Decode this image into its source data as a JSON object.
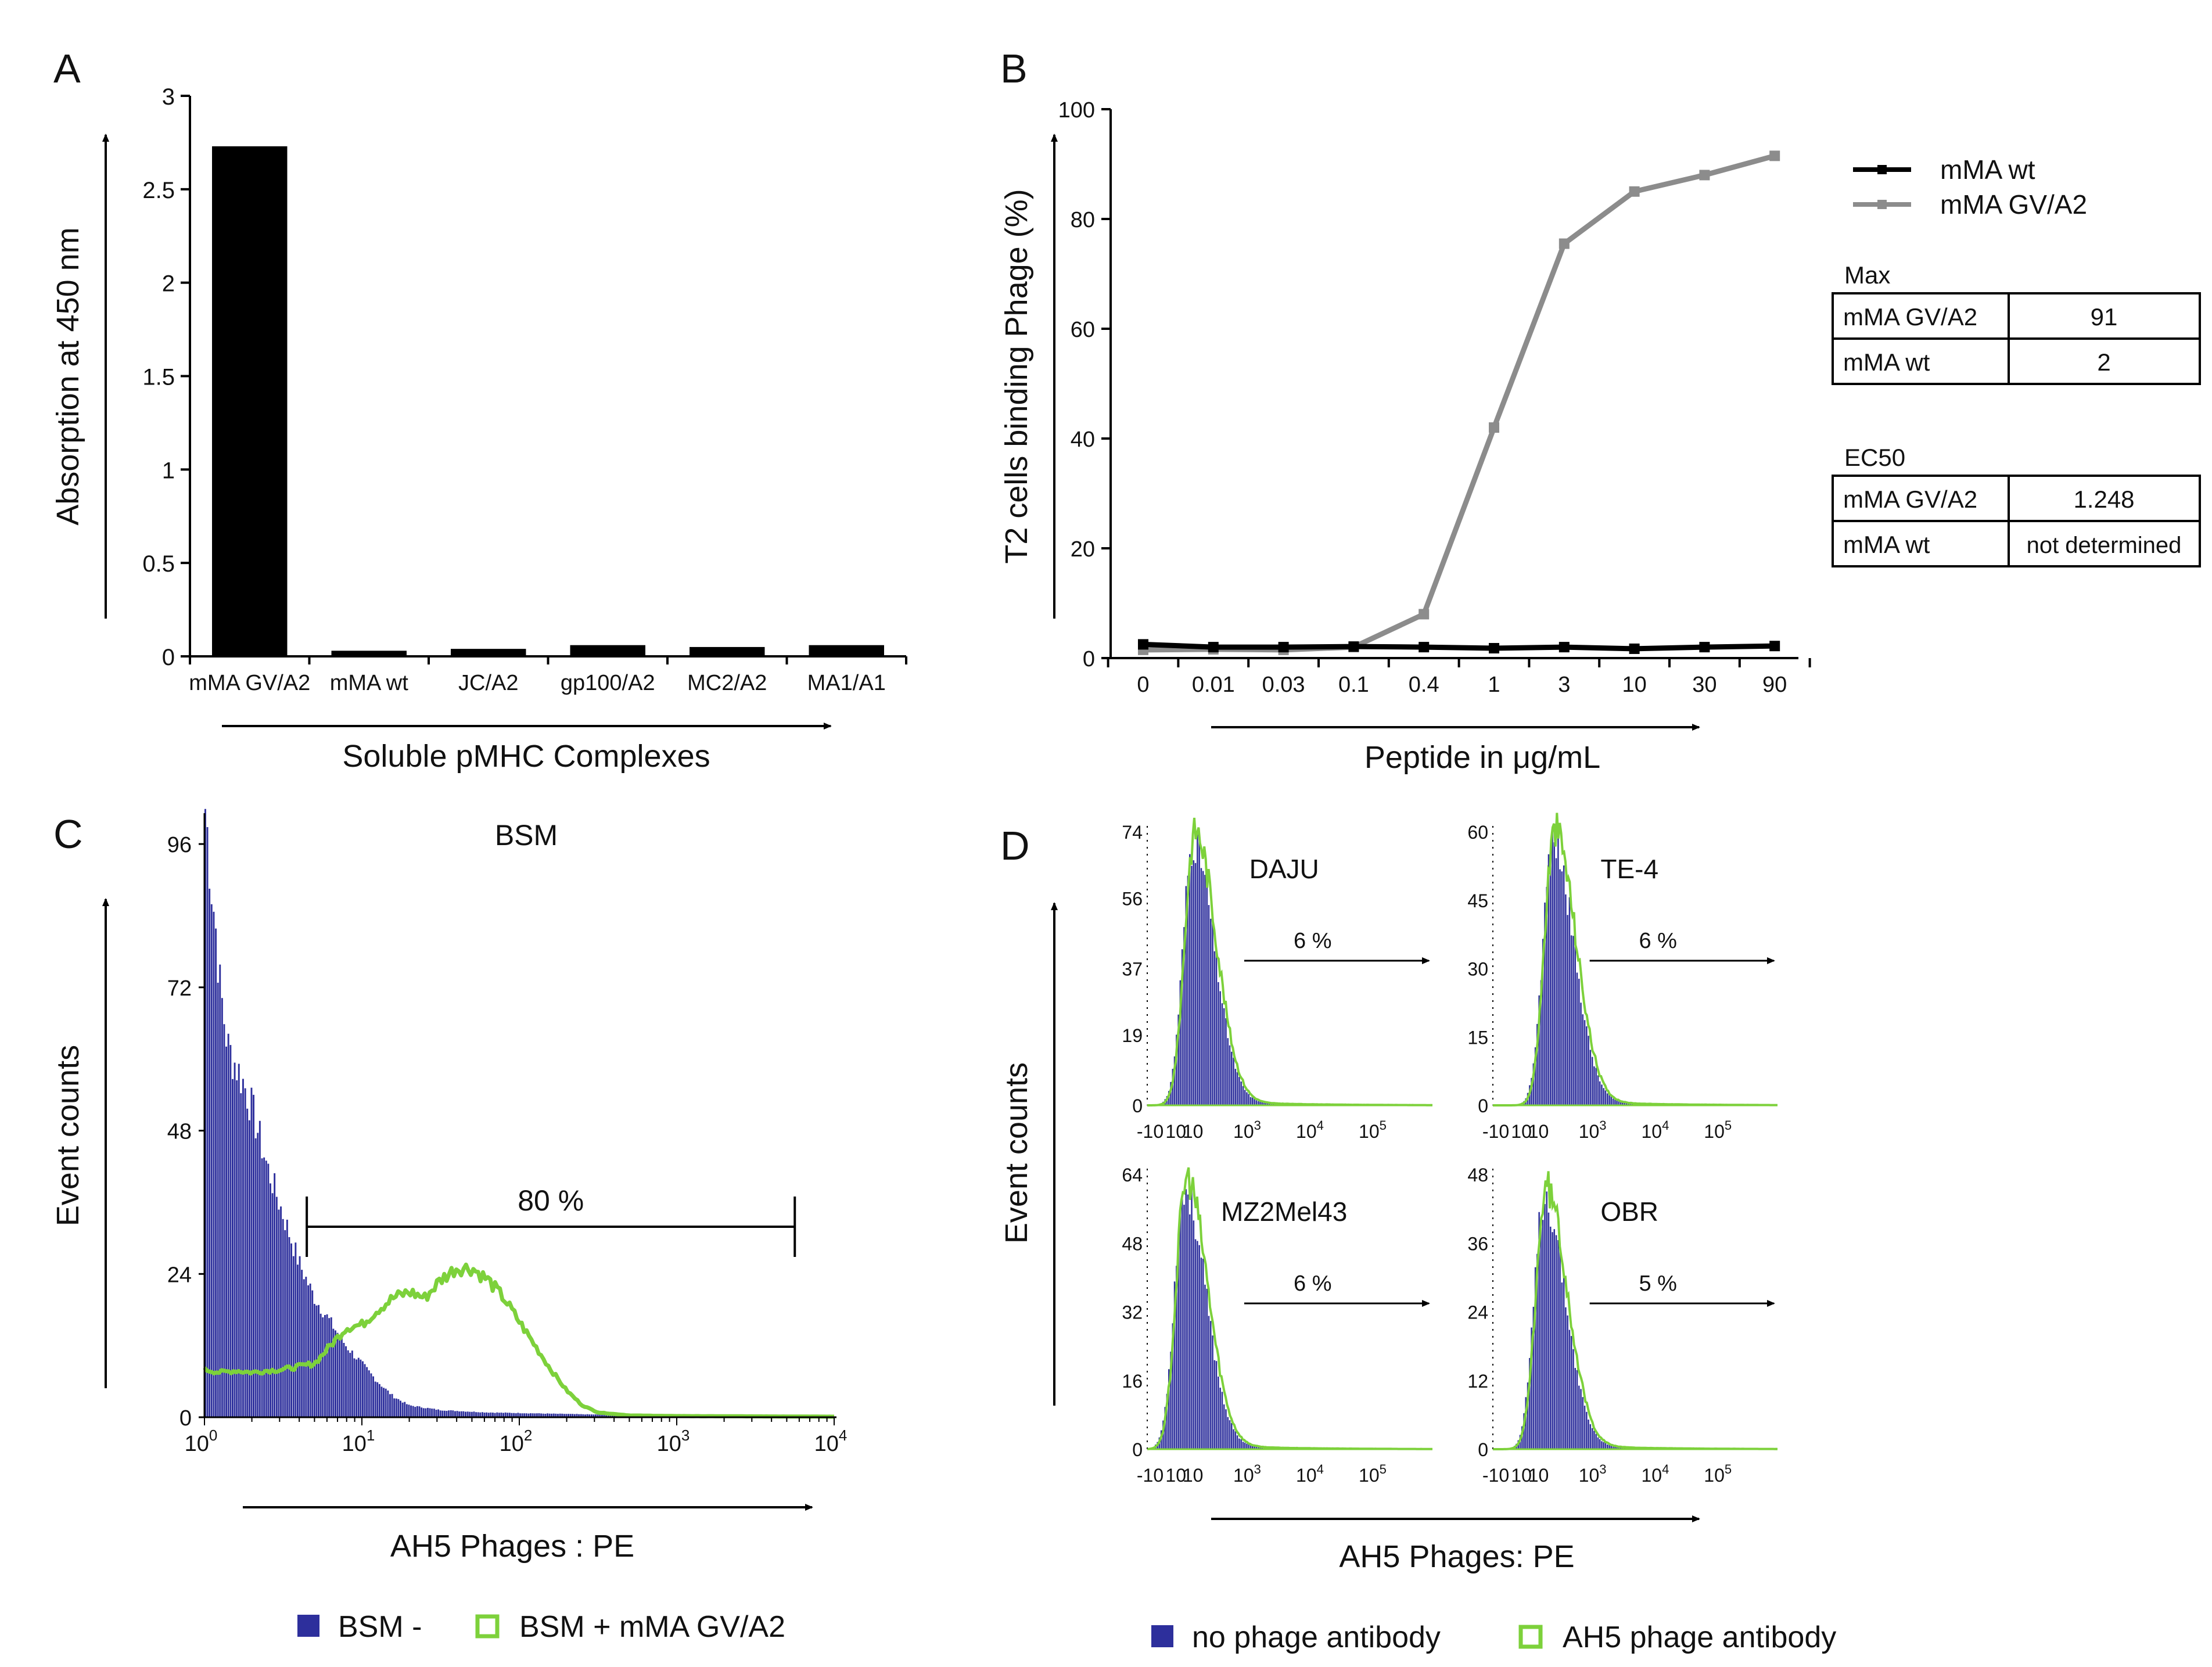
{
  "colors": {
    "black": "#000000",
    "gray_line": "#8c8c8c",
    "histogram_blue": "#2d2f9c",
    "histogram_green": "#7dd13b"
  },
  "chart_data": [
    {
      "id": "A",
      "panel_label": "A",
      "type": "bar",
      "title": "",
      "xlabel": "Soluble pMHC Complexes",
      "ylabel": "Absorption at 450 nm",
      "ylim": [
        0,
        3
      ],
      "yticks": [
        "0",
        "0.5",
        "1",
        "1.5",
        "2",
        "2.5",
        "3"
      ],
      "categories": [
        "mMA GV/A2",
        "mMA wt",
        "JC/A2",
        "gp100/A2",
        "MC2/A2",
        "MA1/A1"
      ],
      "values": [
        2.73,
        0.03,
        0.04,
        0.06,
        0.05,
        0.06
      ]
    },
    {
      "id": "B",
      "panel_label": "B",
      "type": "line",
      "xlabel": "Peptide in μg/mL",
      "ylabel": "T2 cells binding Phage (%)",
      "ylim": [
        0,
        100
      ],
      "yticks": [
        "0",
        "20",
        "40",
        "60",
        "80",
        "100"
      ],
      "categories": [
        "0",
        "0.01",
        "0.03",
        "0.1",
        "0.4",
        "1",
        "3",
        "10",
        "30",
        "90"
      ],
      "series": [
        {
          "name": "mMA wt",
          "color": "#000000",
          "values": [
            2.5,
            2.0,
            2.0,
            2.1,
            2.0,
            1.8,
            2.0,
            1.7,
            2.0,
            2.2
          ]
        },
        {
          "name": "mMA GV/A2",
          "color": "#8c8c8c",
          "values": [
            1.5,
            1.6,
            1.5,
            2.0,
            8.0,
            42.0,
            75.5,
            85.0,
            88.0,
            91.5
          ]
        }
      ],
      "tables": [
        {
          "title": "Max",
          "rows": [
            [
              "mMA GV/A2",
              "91"
            ],
            [
              "mMA wt",
              "2"
            ]
          ]
        },
        {
          "title": "EC50",
          "rows": [
            [
              "mMA GV/A2",
              "1.248"
            ],
            [
              "mMA wt",
              "not determined"
            ]
          ]
        }
      ]
    },
    {
      "id": "C",
      "panel_label": "C",
      "type": "area",
      "title": "BSM",
      "xlabel": "AH5 Phages : PE",
      "ylabel": "Event counts",
      "ylim": [
        0,
        100
      ],
      "yticks": [
        "0",
        "24",
        "48",
        "72",
        "96"
      ],
      "xticks": [
        {
          "base": "10",
          "exp": "0"
        },
        {
          "base": "10",
          "exp": "1"
        },
        {
          "base": "10",
          "exp": "2"
        },
        {
          "base": "10",
          "exp": "3"
        },
        {
          "base": "10",
          "exp": "4"
        }
      ],
      "xlim_log10": [
        0,
        4
      ],
      "gate_label": "80  %",
      "gate_range_log10": [
        0.65,
        3.75
      ],
      "series": [
        {
          "name": "BSM -",
          "style": "filled",
          "color": "#2d2f9c",
          "x_log10": [
            0,
            0.02,
            0.05,
            0.08,
            0.1,
            0.15,
            0.2,
            0.25,
            0.3,
            0.4,
            0.5,
            0.6,
            0.7,
            0.8,
            0.9,
            1.0,
            1.1,
            1.2,
            1.3,
            1.5,
            1.8,
            2.2,
            2.6,
            3.0,
            3.5,
            4.0
          ],
          "y": [
            104,
            98,
            88,
            80,
            72,
            62,
            59,
            56,
            52,
            42,
            34,
            26,
            20,
            16,
            12,
            9,
            6,
            3.5,
            2,
            1.2,
            0.8,
            0.6,
            0.4,
            0.3,
            0.2,
            0.1
          ]
        },
        {
          "name": "BSM + mMA GV/A2",
          "style": "outline",
          "color": "#7dd13b",
          "x_log10": [
            0,
            0.1,
            0.2,
            0.3,
            0.4,
            0.5,
            0.6,
            0.7,
            0.8,
            0.9,
            1.0,
            1.1,
            1.2,
            1.3,
            1.4,
            1.5,
            1.6,
            1.7,
            1.8,
            1.9,
            2.0,
            2.1,
            2.2,
            2.3,
            2.4,
            2.5,
            2.7,
            3.0,
            4.0
          ],
          "y": [
            8,
            7.5,
            7.8,
            7.5,
            7.8,
            8,
            8.5,
            9,
            12,
            15,
            15.5,
            18,
            20,
            21,
            20,
            23,
            25,
            25,
            23,
            20,
            16,
            12,
            8,
            4.5,
            2,
            0.8,
            0.3,
            0.2,
            0.1
          ]
        }
      ]
    },
    {
      "id": "D",
      "panel_label": "D",
      "type": "area",
      "xlabel": "AH5 Phages: PE",
      "ylabel": "Event counts",
      "subplot_xticks": [
        {
          "base": "-10",
          "exp": ""
        },
        {
          "base": "10",
          "exp": ""
        },
        {
          "base": "10",
          "exp": ""
        },
        {
          "base": "10",
          "exp": "3"
        },
        {
          "base": "10",
          "exp": "4"
        },
        {
          "base": "10",
          "exp": "5"
        }
      ],
      "subplots": [
        {
          "name": "DAJU",
          "percent": "6 %",
          "yticks": [
            "0",
            "19",
            "37",
            "56",
            "74"
          ],
          "ymax": 74,
          "peak_pos": 0.16,
          "peak_frac": 1.0
        },
        {
          "name": "TE-4",
          "percent": "6 %",
          "yticks": [
            "0",
            "15",
            "30",
            "45",
            "60"
          ],
          "ymax": 60,
          "peak_pos": 0.21,
          "peak_frac": 1.0
        },
        {
          "name": "MZ2Mel43",
          "percent": "6 %",
          "yticks": [
            "0",
            "16",
            "32",
            "48",
            "64"
          ],
          "ymax": 64,
          "peak_pos": 0.13,
          "peak_frac": 0.98
        },
        {
          "name": "OBR",
          "percent": "5 %",
          "yticks": [
            "0",
            "12",
            "24",
            "36",
            "48"
          ],
          "ymax": 48,
          "peak_pos": 0.18,
          "peak_frac": 0.95
        }
      ],
      "legend": [
        {
          "name": "no phage antibody",
          "style": "filled",
          "color": "#2d2f9c"
        },
        {
          "name": "AH5 phage antibody",
          "style": "outline",
          "color": "#7dd13b"
        }
      ]
    }
  ]
}
